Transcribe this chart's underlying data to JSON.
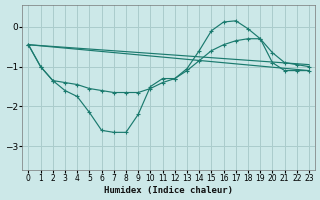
{
  "xlabel": "Humidex (Indice chaleur)",
  "background_color": "#cce8e8",
  "grid_color": "#aacccc",
  "line_color": "#1a7a6e",
  "xlim": [
    -0.5,
    23.5
  ],
  "ylim": [
    -3.6,
    0.55
  ],
  "yticks": [
    0,
    -1,
    -2,
    -3
  ],
  "xticks": [
    0,
    1,
    2,
    3,
    4,
    5,
    6,
    7,
    8,
    9,
    10,
    11,
    12,
    13,
    14,
    15,
    16,
    17,
    18,
    19,
    20,
    21,
    22,
    23
  ],
  "series": [
    {
      "x": [
        0,
        1,
        2,
        3,
        4,
        5,
        6,
        7,
        8,
        9,
        10,
        11,
        12,
        13,
        14,
        15,
        16,
        17,
        18,
        19,
        20,
        21,
        22,
        23
      ],
      "y": [
        -0.45,
        -1.0,
        -1.35,
        -1.6,
        -1.75,
        -2.15,
        -2.6,
        -2.65,
        -2.65,
        -2.2,
        -1.5,
        -1.3,
        -1.3,
        -1.05,
        -0.6,
        -0.1,
        0.12,
        0.15,
        -0.05,
        -0.3,
        -0.9,
        -1.1,
        -1.1,
        -1.1
      ],
      "has_marker": true
    },
    {
      "x": [
        0,
        1,
        2,
        3,
        4,
        5,
        6,
        7,
        8,
        9,
        10,
        11,
        12,
        13,
        14,
        15,
        16,
        17,
        18,
        19,
        20,
        21,
        22,
        23
      ],
      "y": [
        -0.45,
        -1.0,
        -1.35,
        -1.4,
        -1.45,
        -1.55,
        -1.6,
        -1.65,
        -1.65,
        -1.65,
        -1.55,
        -1.4,
        -1.3,
        -1.1,
        -0.85,
        -0.6,
        -0.45,
        -0.35,
        -0.3,
        -0.3,
        -0.65,
        -0.9,
        -0.95,
        -1.0
      ],
      "has_marker": true
    },
    {
      "x": [
        0,
        23
      ],
      "y": [
        -0.45,
        -0.95
      ],
      "has_marker": false
    },
    {
      "x": [
        0,
        23
      ],
      "y": [
        -0.45,
        -1.1
      ],
      "has_marker": false
    }
  ]
}
